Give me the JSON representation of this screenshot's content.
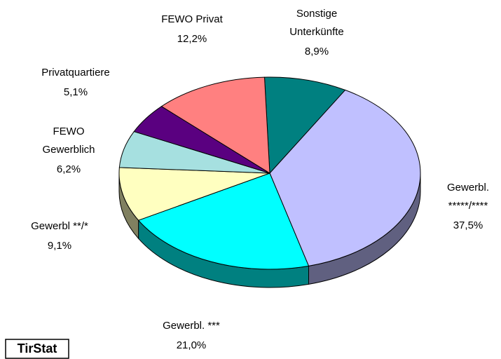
{
  "chart_data": {
    "type": "pie",
    "categories": [
      "Sonstige\nUnterkünfte",
      "Gewerbl.\n*****/****",
      "Gewerbl. ***",
      "Gewerbl **/*",
      "FEWO\nGewerblich",
      "Privatquartiere",
      "FEWO Privat"
    ],
    "values": [
      8.9,
      37.5,
      21.0,
      9.1,
      6.2,
      5.1,
      12.2
    ],
    "value_labels": [
      "8,9%",
      "37,5%",
      "21,0%",
      "9,1%",
      "6,2%",
      "5,1%",
      "12,2%"
    ],
    "colors": [
      "#008080",
      "#c0c0ff",
      "#00ffff",
      "#ffffc0",
      "#a6e0e0",
      "#5a0080",
      "#ff8080"
    ],
    "source": "TirStat"
  }
}
